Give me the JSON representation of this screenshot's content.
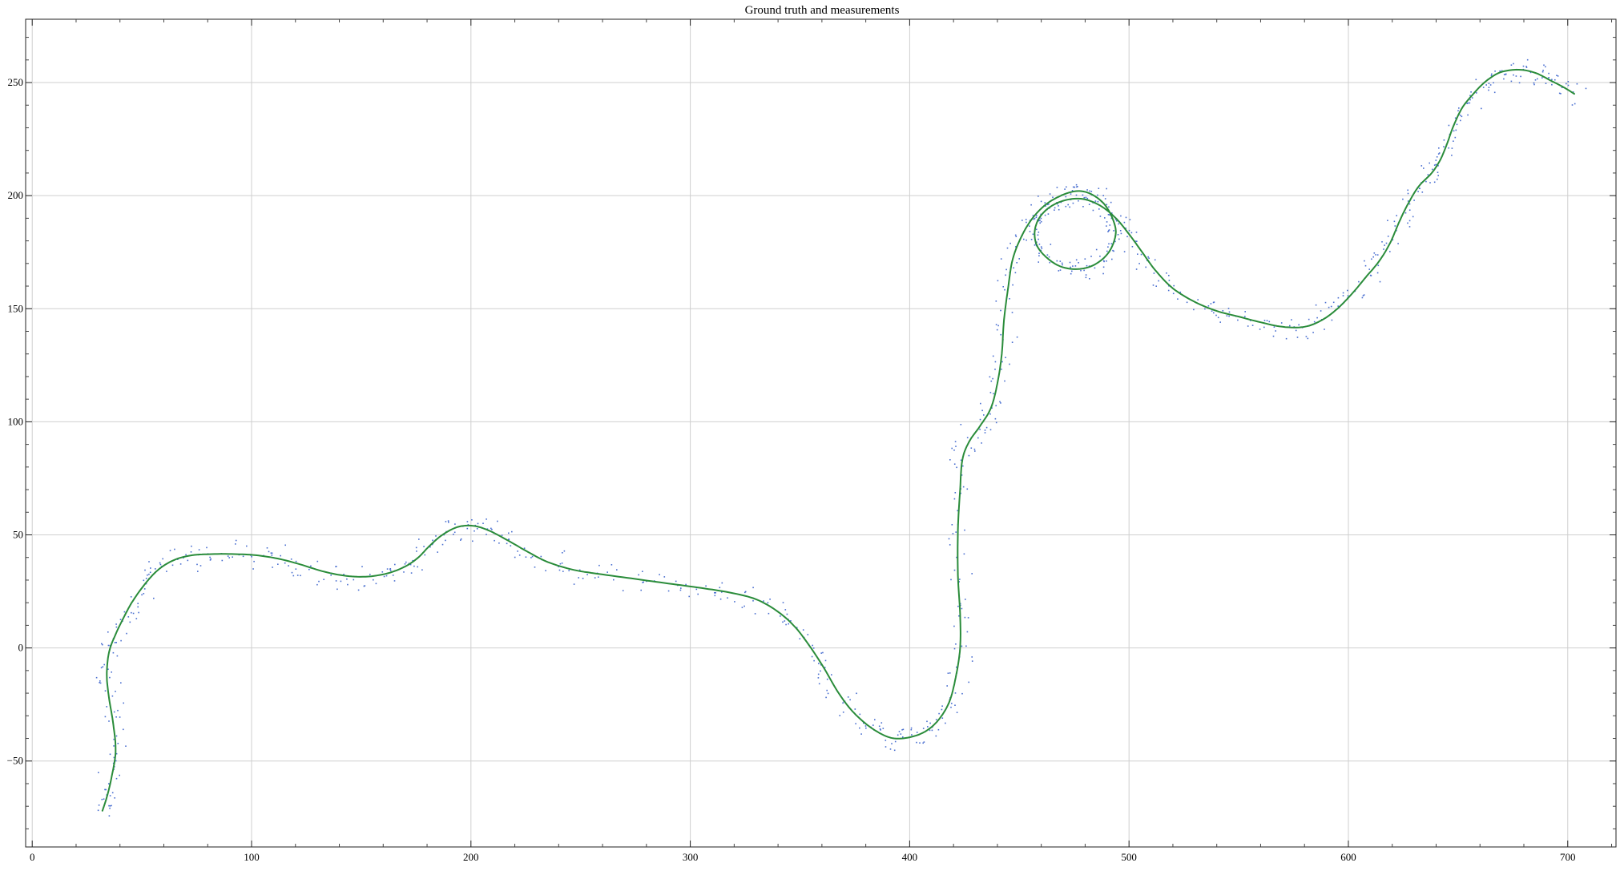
{
  "chart_data": {
    "type": "line",
    "title": "Ground truth and measurements",
    "xlabel": "",
    "ylabel": "",
    "xlim": [
      -3,
      722
    ],
    "ylim": [
      -88,
      278
    ],
    "x_ticks": [
      0,
      100,
      200,
      300,
      400,
      500,
      600,
      700
    ],
    "y_ticks": [
      -50,
      0,
      50,
      100,
      150,
      200,
      250
    ],
    "x_tick_labels": [
      "0",
      "100",
      "200",
      "300",
      "400",
      "500",
      "600",
      "700"
    ],
    "y_tick_labels": [
      "−50",
      "0",
      "50",
      "100",
      "150",
      "200",
      "250"
    ],
    "grid": true,
    "legend": "none",
    "series": [
      {
        "name": "Ground truth",
        "kind": "line",
        "color": "#2a8c3a",
        "points": [
          [
            32,
            -72
          ],
          [
            34,
            -66
          ],
          [
            36,
            -58
          ],
          [
            38,
            -46
          ],
          [
            37,
            -34
          ],
          [
            35,
            -22
          ],
          [
            34,
            -12
          ],
          [
            35,
            -2
          ],
          [
            38,
            6
          ],
          [
            42,
            14
          ],
          [
            46,
            21
          ],
          [
            52,
            29
          ],
          [
            58,
            35
          ],
          [
            65,
            39
          ],
          [
            73,
            41
          ],
          [
            82,
            41.5
          ],
          [
            92,
            41.5
          ],
          [
            102,
            41
          ],
          [
            112,
            39.5
          ],
          [
            122,
            37
          ],
          [
            132,
            34
          ],
          [
            142,
            32
          ],
          [
            152,
            31.5
          ],
          [
            162,
            33
          ],
          [
            170,
            36
          ],
          [
            176,
            40
          ],
          [
            181,
            45
          ],
          [
            187,
            50
          ],
          [
            194,
            53.5
          ],
          [
            201,
            54
          ],
          [
            208,
            52
          ],
          [
            216,
            48
          ],
          [
            225,
            43
          ],
          [
            235,
            38
          ],
          [
            247,
            34.5
          ],
          [
            260,
            32.5
          ],
          [
            275,
            30.5
          ],
          [
            290,
            28.5
          ],
          [
            305,
            26.5
          ],
          [
            318,
            24.5
          ],
          [
            330,
            21.5
          ],
          [
            340,
            16
          ],
          [
            348,
            9
          ],
          [
            355,
            0
          ],
          [
            361,
            -9
          ],
          [
            367,
            -19
          ],
          [
            373,
            -27
          ],
          [
            380,
            -33.5
          ],
          [
            387,
            -38
          ],
          [
            393,
            -40
          ],
          [
            400,
            -39.5
          ],
          [
            407,
            -37
          ],
          [
            413,
            -32
          ],
          [
            418,
            -24
          ],
          [
            421,
            -13
          ],
          [
            423,
            0
          ],
          [
            423,
            15
          ],
          [
            422,
            32
          ],
          [
            422,
            52
          ],
          [
            423,
            70
          ],
          [
            424,
            83
          ],
          [
            427,
            91
          ],
          [
            432,
            98
          ],
          [
            437,
            106
          ],
          [
            440,
            117
          ],
          [
            442,
            130
          ],
          [
            443,
            145
          ],
          [
            445,
            160
          ],
          [
            447,
            172
          ],
          [
            451,
            182
          ],
          [
            456,
            190
          ],
          [
            462,
            196
          ],
          [
            469,
            200
          ],
          [
            476,
            202
          ],
          [
            482,
            201
          ],
          [
            488,
            197
          ],
          [
            492,
            191
          ],
          [
            494,
            184
          ],
          [
            492,
            177
          ],
          [
            488,
            172
          ],
          [
            482,
            168.5
          ],
          [
            475,
            167.5
          ],
          [
            468,
            169
          ],
          [
            462,
            173
          ],
          [
            458,
            178
          ],
          [
            457,
            184
          ],
          [
            459,
            190
          ],
          [
            464,
            195
          ],
          [
            471,
            198
          ],
          [
            479,
            198.5
          ],
          [
            487,
            195.5
          ],
          [
            494,
            190
          ],
          [
            500,
            183
          ],
          [
            506,
            175
          ],
          [
            512,
            167
          ],
          [
            520,
            159
          ],
          [
            530,
            153
          ],
          [
            540,
            149
          ],
          [
            550,
            146.5
          ],
          [
            560,
            144
          ],
          [
            570,
            142
          ],
          [
            580,
            142
          ],
          [
            588,
            145
          ],
          [
            595,
            150
          ],
          [
            602,
            157
          ],
          [
            608,
            164
          ],
          [
            614,
            171
          ],
          [
            619,
            179
          ],
          [
            623,
            188
          ],
          [
            627,
            196
          ],
          [
            632,
            204
          ],
          [
            638,
            210
          ],
          [
            642,
            216
          ],
          [
            645,
            223
          ],
          [
            648,
            231
          ],
          [
            652,
            239
          ],
          [
            657,
            245
          ],
          [
            662,
            250
          ],
          [
            668,
            254
          ],
          [
            674,
            255.5
          ],
          [
            680,
            255.5
          ],
          [
            686,
            254
          ],
          [
            692,
            251
          ],
          [
            698,
            248
          ],
          [
            703,
            245
          ]
        ]
      },
      {
        "name": "Measurements",
        "kind": "scatter",
        "color": "#4a6fd0",
        "noise": 4
      }
    ]
  }
}
